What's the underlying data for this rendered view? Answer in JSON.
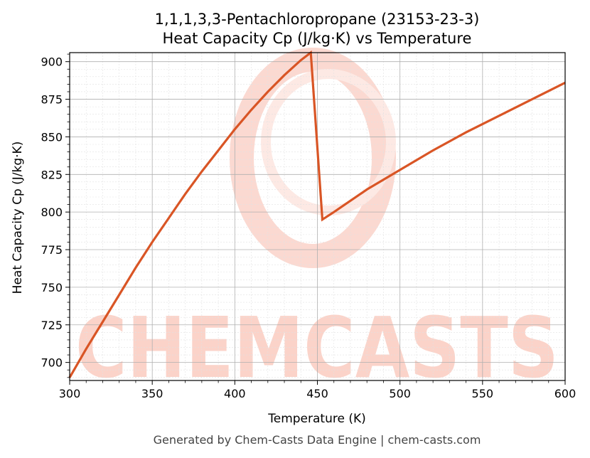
{
  "chart_data": {
    "type": "line",
    "title_line1": "1,1,1,3,3-Pentachloropropane (23153-23-3)",
    "title_line2": "Heat Capacity Cp (J/kg·K) vs Temperature",
    "xlabel": "Temperature (K)",
    "ylabel": "Heat Capacity Cp (J/kg·K)",
    "xlim": [
      300,
      600
    ],
    "ylim": [
      688,
      906
    ],
    "xticks": [
      300,
      350,
      400,
      450,
      500,
      550,
      600
    ],
    "yticks": [
      700,
      725,
      750,
      775,
      800,
      825,
      850,
      875,
      900
    ],
    "grid": true,
    "line_color": "#d95525",
    "series": [
      {
        "x": [
          300,
          310,
          320,
          330,
          340,
          350,
          360,
          370,
          380,
          390,
          400,
          410,
          420,
          430,
          440,
          446,
          453,
          460,
          480,
          500,
          520,
          540,
          560,
          580,
          600
        ],
        "y": [
          690,
          709,
          727,
          745,
          763,
          780,
          796,
          812,
          827,
          841,
          855,
          868,
          880,
          891,
          901,
          906,
          795,
          800,
          815,
          828,
          841,
          853,
          864,
          875,
          886
        ]
      }
    ]
  },
  "watermark": {
    "text": "CHEMCASTS",
    "color": "#fbd3c9"
  },
  "footer": "Generated by Chem-Casts Data Engine | chem-casts.com"
}
